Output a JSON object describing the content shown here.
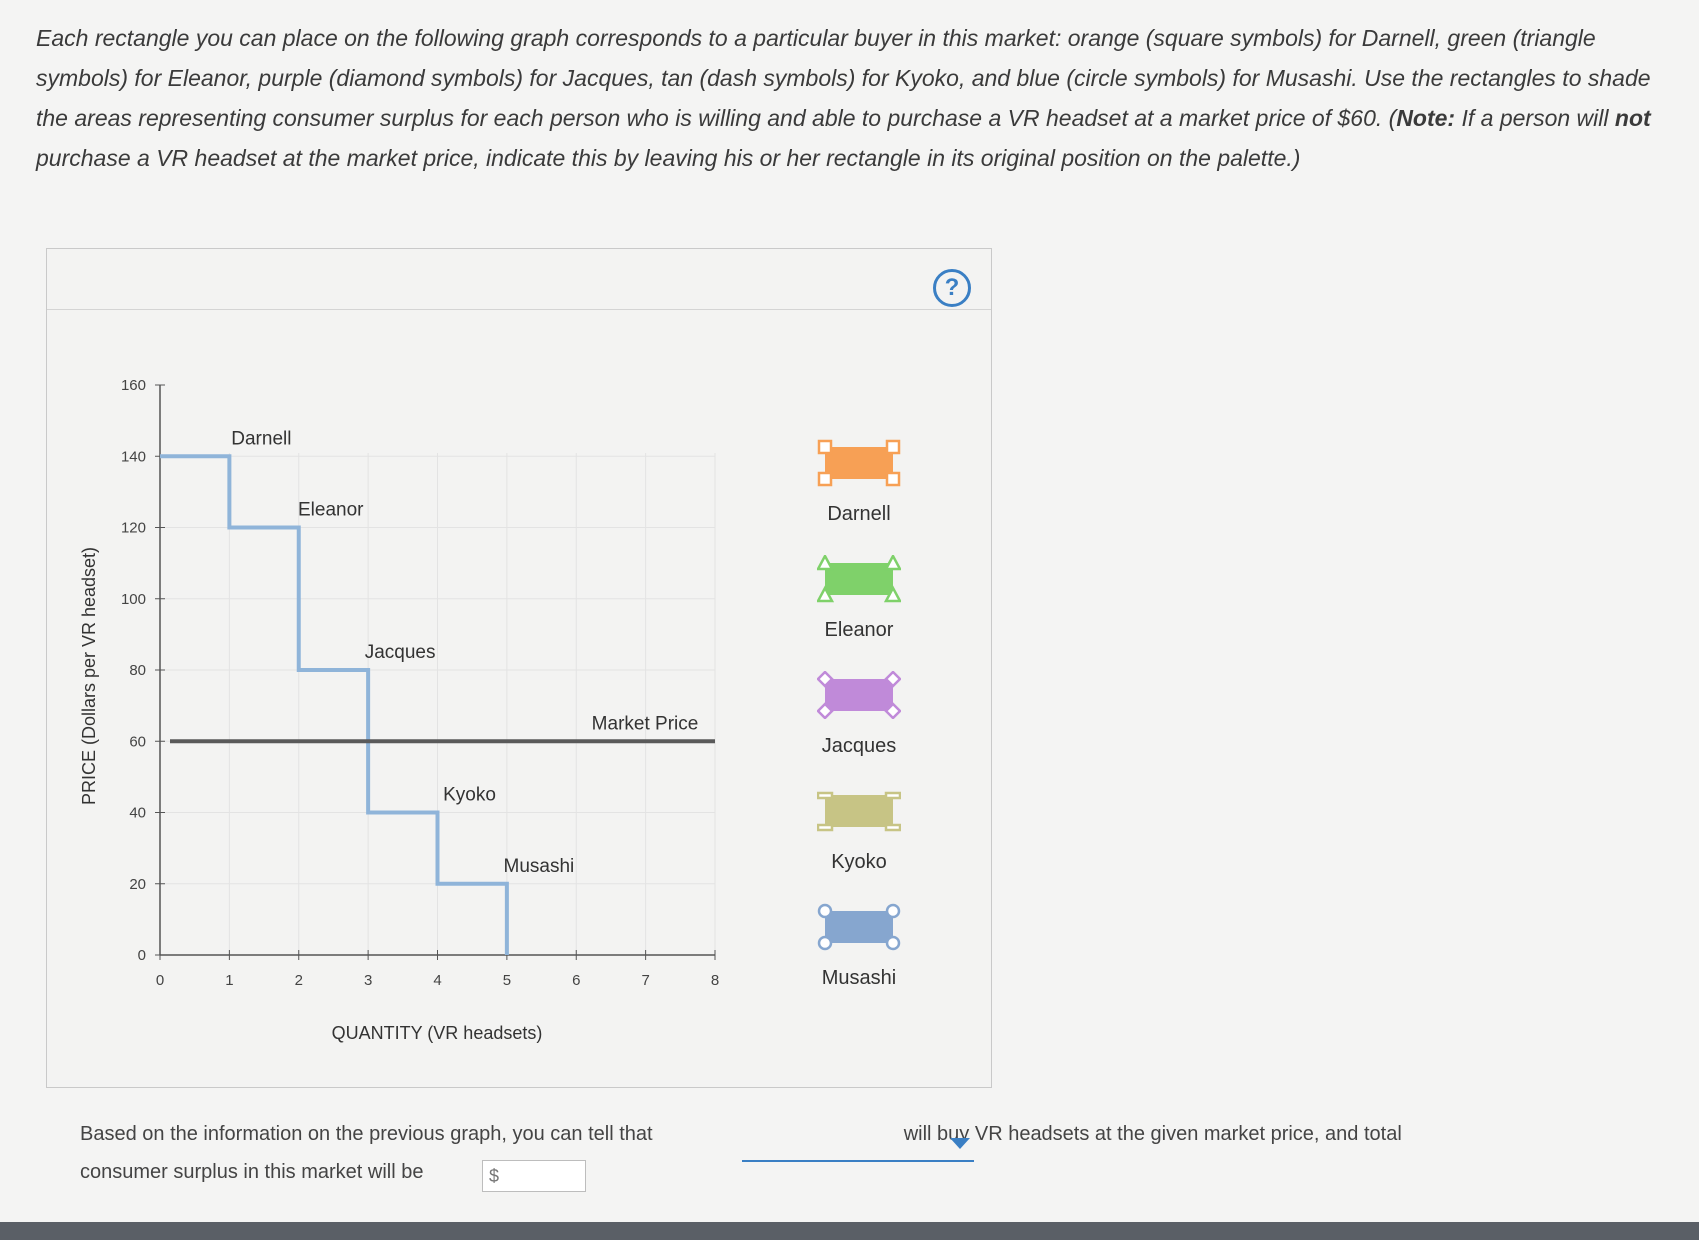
{
  "instructions": {
    "part1": "Each rectangle you can place on the following graph corresponds to a particular buyer in this market: orange (square symbols) for Darnell, green (triangle symbols) for Eleanor, purple (diamond symbols) for Jacques, tan (dash symbols) for Kyoko, and blue (circle symbols) for Musashi. Use the rectangles to shade the areas representing consumer surplus for each person who is willing and able to purchase a VR headset at a market price of $60. (",
    "note_label": "Note:",
    "part2": " If a person will ",
    "not_label": "not",
    "part3": " purchase a VR headset at the market price, indicate this by leaving his or her rectangle in its original position on the palette.)"
  },
  "help_label": "?",
  "chart_data": {
    "type": "line",
    "xlabel": "QUANTITY (VR headsets)",
    "ylabel": "PRICE (Dollars per VR headset)",
    "xlim": [
      0,
      8
    ],
    "ylim": [
      0,
      160
    ],
    "x_ticks": [
      "0",
      "1",
      "2",
      "3",
      "4",
      "5",
      "6",
      "7",
      "8"
    ],
    "y_ticks": [
      "0",
      "20",
      "40",
      "60",
      "80",
      "100",
      "120",
      "140",
      "160"
    ],
    "grid": true,
    "demand_steps": [
      {
        "buyer": "Darnell",
        "price": 140,
        "from": 0,
        "to": 1
      },
      {
        "buyer": "Eleanor",
        "price": 120,
        "from": 1,
        "to": 2
      },
      {
        "buyer": "Jacques",
        "price": 80,
        "from": 2,
        "to": 3
      },
      {
        "buyer": "Kyoko",
        "price": 40,
        "from": 3,
        "to": 4
      },
      {
        "buyer": "Musashi",
        "price": 20,
        "from": 4,
        "to": 5
      }
    ],
    "market_price": {
      "label": "Market Price",
      "value": 60
    },
    "demand_color": "#8fb4d9",
    "market_price_color": "#5a5a5a"
  },
  "palette": [
    {
      "name": "Darnell",
      "color": "#f7a055",
      "symbol": "square"
    },
    {
      "name": "Eleanor",
      "color": "#7fd16a",
      "symbol": "triangle"
    },
    {
      "name": "Jacques",
      "color": "#c08ad9",
      "symbol": "diamond"
    },
    {
      "name": "Kyoko",
      "color": "#c7c485",
      "symbol": "dash"
    },
    {
      "name": "Musashi",
      "color": "#86a6cf",
      "symbol": "circle"
    }
  ],
  "question": {
    "part1": "Based on the information on the previous graph, you can tell that",
    "part2": "will buy VR headsets at the given market price, and total",
    "part3": "consumer surplus in this market will be",
    "currency_placeholder": "$",
    "end": "."
  }
}
